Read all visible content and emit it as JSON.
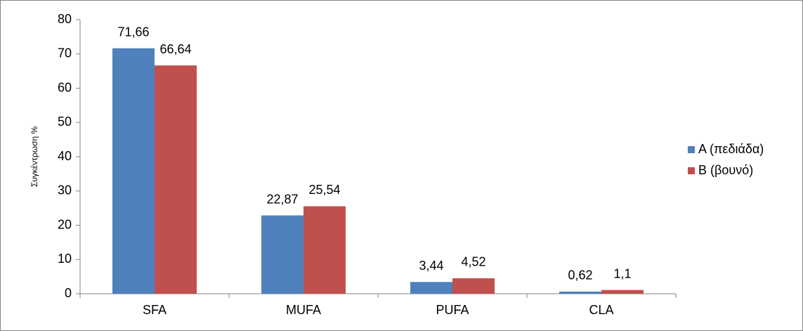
{
  "chart_data": {
    "type": "bar",
    "y_label": "Συγκέντρωση %",
    "categories": [
      "SFA",
      "MUFA",
      "PUFA",
      "CLA"
    ],
    "series": [
      {
        "name": "A (πεδιάδα)",
        "color": "#4f81bd",
        "values": [
          71.66,
          22.87,
          3.44,
          0.62
        ],
        "value_labels": [
          "71,66",
          "22,87",
          "3,44",
          "0,62"
        ]
      },
      {
        "name": "B (βουνό)",
        "color": "#c0504d",
        "values": [
          66.64,
          25.54,
          4.52,
          1.1
        ],
        "value_labels": [
          "66,64",
          "25,54",
          "4,52",
          "1,1"
        ]
      }
    ],
    "ylim": [
      0,
      80
    ],
    "yticks": [
      0,
      10,
      20,
      30,
      40,
      50,
      60,
      70,
      80
    ],
    "grid": false,
    "legend": "right"
  }
}
